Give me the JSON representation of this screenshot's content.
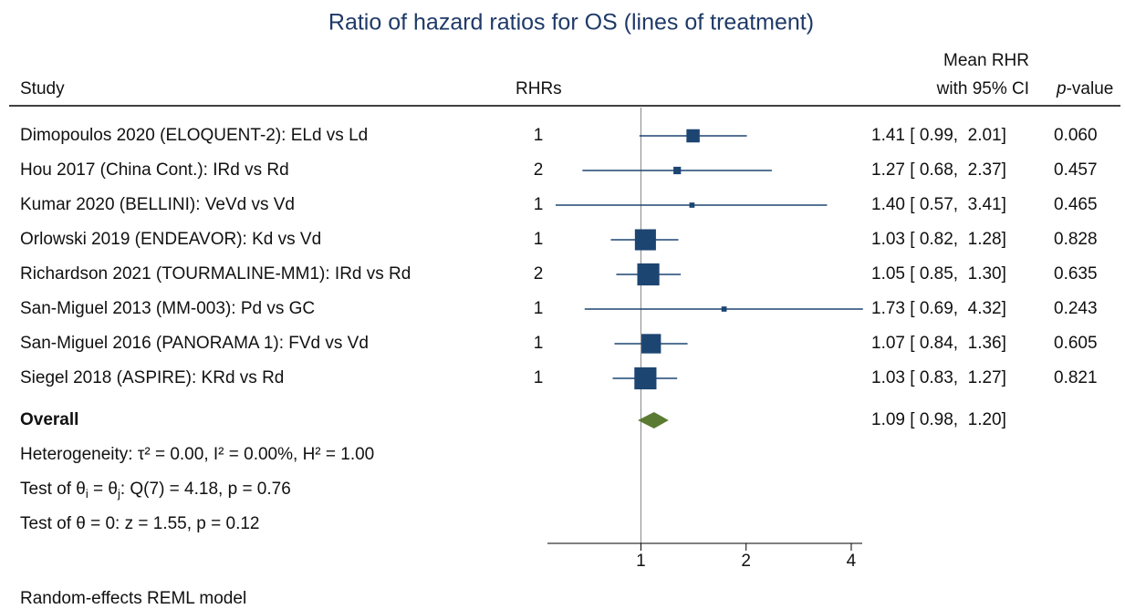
{
  "chart_data": {
    "type": "forest",
    "title": "Ratio of hazard ratios for OS (lines of treatment)",
    "headers": {
      "study": "Study",
      "rhrs": "RHRs",
      "mean": [
        "Mean RHR",
        "with 95% CI"
      ],
      "p": [
        "p",
        "-value"
      ]
    },
    "studies": [
      "Dimopoulos 2020 (ELOQUENT-2): ELd vs Ld",
      "Hou 2017 (China Cont.): IRd vs Rd",
      "Kumar 2020 (BELLINI): VeVd vs Vd",
      "Orlowski 2019 (ENDEAVOR): Kd vs Vd",
      "Richardson 2021 (TOURMALINE-MM1): IRd vs Rd",
      "San-Miguel 2013 (MM-003): Pd vs GC",
      "San-Miguel 2016 (PANORAMA 1): FVd vs Vd",
      "Siegel 2018 (ASPIRE): KRd vs Rd"
    ],
    "rhrs": [
      1,
      2,
      1,
      1,
      2,
      1,
      1,
      1
    ],
    "estimates": [
      1.41,
      1.27,
      1.4,
      1.03,
      1.05,
      1.73,
      1.07,
      1.03
    ],
    "lower": [
      0.99,
      0.68,
      0.57,
      0.82,
      0.85,
      0.69,
      0.84,
      0.83
    ],
    "upper": [
      2.01,
      2.37,
      3.41,
      1.28,
      1.3,
      4.32,
      1.36,
      1.27
    ],
    "value_labels": [
      "1.41 [ 0.99,  2.01]",
      "1.27 [ 0.68,  2.37]",
      "1.40 [ 0.57,  3.41]",
      "1.03 [ 0.82,  1.28]",
      "1.05 [ 0.85,  1.30]",
      "1.73 [ 0.69,  4.32]",
      "1.07 [ 0.84,  1.36]",
      "1.03 [ 0.83,  1.27]"
    ],
    "p_values": [
      "0.060",
      "0.457",
      "0.465",
      "0.828",
      "0.635",
      "0.243",
      "0.605",
      "0.821"
    ],
    "weights": [
      8.4,
      2.7,
      1.3,
      21.3,
      23.4,
      1.3,
      18.2,
      23.4
    ],
    "color": "#1d4572",
    "overall": {
      "label": "Overall",
      "estimate": 1.09,
      "lower": 0.98,
      "upper": 1.2,
      "value_label": "1.09 [ 0.98,  1.20]",
      "color": "#5b7b32"
    },
    "stats": [
      [
        "Heterogeneity: τ² = 0.00, I² = 0.00%, H² = 1.00"
      ],
      [
        "Test of θ",
        "i",
        " = θ",
        "j",
        ": Q(7) = 4.18, p = 0.76"
      ],
      [
        "Test of θ = 0: z = 1.55, p = 0.12"
      ]
    ],
    "note": "Random-effects REML model",
    "xlim": [
      0.54,
      4.3
    ],
    "xticks": [
      1,
      2,
      4
    ],
    "log_scale": true,
    "null_value": 1
  }
}
